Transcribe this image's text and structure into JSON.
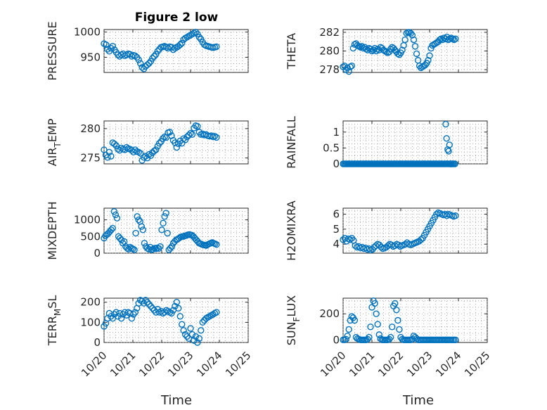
{
  "figure": {
    "title": "Figure 2 low",
    "xlabel": "Time"
  },
  "style": {
    "marker_color": "#0072BD",
    "axes_color": "#262626",
    "grid_color": "#9a9a9a"
  },
  "x_axis": {
    "range": [
      0,
      5
    ],
    "tick_values": [
      0,
      1,
      2,
      3,
      4,
      5
    ],
    "tick_labels": [
      "10/20",
      "10/21",
      "10/22",
      "10/23",
      "10/24",
      "10/25"
    ]
  },
  "chart_data": [
    {
      "type": "scatter",
      "ylabel": "PRESSURE",
      "ylabel_parts": [
        "PRESSURE"
      ],
      "ylim": [
        920,
        1005
      ],
      "yticks": [
        950,
        1000
      ],
      "ytick_labels": [
        "950",
        "1000"
      ],
      "x": [
        0.0,
        0.07,
        0.12,
        0.18,
        0.24,
        0.3,
        0.36,
        0.42,
        0.48,
        0.54,
        0.6,
        0.66,
        0.72,
        0.78,
        0.84,
        0.9,
        0.96,
        1.02,
        1.08,
        1.14,
        1.2,
        1.26,
        1.32,
        1.38,
        1.44,
        1.5,
        1.56,
        1.62,
        1.68,
        1.74,
        1.8,
        1.86,
        1.92,
        1.98,
        2.04,
        2.1,
        2.16,
        2.22,
        2.28,
        2.34,
        2.4,
        2.46,
        2.52,
        2.58,
        2.64,
        2.7,
        2.76,
        2.82,
        2.88,
        2.94,
        3.0,
        3.06,
        3.12,
        3.18,
        3.24,
        3.3,
        3.36,
        3.42,
        3.48,
        3.54,
        3.6,
        3.66,
        3.72,
        3.78,
        3.84,
        3.9
      ],
      "y": [
        977,
        975,
        966,
        962,
        968,
        972,
        965,
        960,
        955,
        952,
        955,
        957,
        953,
        955,
        957,
        956,
        952,
        954,
        953,
        950,
        945,
        938,
        930,
        927,
        932,
        935,
        938,
        942,
        948,
        952,
        956,
        962,
        966,
        970,
        971,
        972,
        970,
        968,
        971,
        970,
        965,
        968,
        970,
        972,
        975,
        978,
        985,
        988,
        990,
        992,
        994,
        996,
        998,
        1000,
        996,
        990,
        986,
        980,
        975,
        973,
        972,
        971,
        970,
        969,
        970,
        971
      ]
    },
    {
      "type": "scatter",
      "ylabel": "THETA",
      "ylabel_parts": [
        "THETA"
      ],
      "ylim": [
        277.7,
        282.3
      ],
      "yticks": [
        278,
        280,
        282
      ],
      "ytick_labels": [
        "278",
        "280",
        "282"
      ],
      "x": [
        0.0,
        0.05,
        0.1,
        0.15,
        0.2,
        0.25,
        0.3,
        0.35,
        0.4,
        0.45,
        0.5,
        0.55,
        0.6,
        0.65,
        0.7,
        0.75,
        0.8,
        0.85,
        0.9,
        0.95,
        1.0,
        1.05,
        1.1,
        1.15,
        1.2,
        1.25,
        1.3,
        1.35,
        1.4,
        1.45,
        1.5,
        1.55,
        1.6,
        1.65,
        1.7,
        1.75,
        1.8,
        1.85,
        1.9,
        1.95,
        2.0,
        2.05,
        2.1,
        2.15,
        2.2,
        2.25,
        2.3,
        2.35,
        2.4,
        2.45,
        2.5,
        2.55,
        2.6,
        2.65,
        2.7,
        2.75,
        2.8,
        2.85,
        2.9,
        2.95,
        3.0,
        3.05,
        3.1,
        3.15,
        3.2,
        3.25,
        3.3,
        3.35,
        3.4,
        3.45,
        3.5,
        3.55,
        3.6,
        3.65,
        3.7,
        3.75,
        3.8,
        3.85,
        3.9
      ],
      "y": [
        278.3,
        278.4,
        278.0,
        278.2,
        277.8,
        278.3,
        278.4,
        280.3,
        280.7,
        280.8,
        280.6,
        280.5,
        280.4,
        280.5,
        280.3,
        280.4,
        280.2,
        280.1,
        280.3,
        280.2,
        280.0,
        280.1,
        280.3,
        280.0,
        280.2,
        280.1,
        280.4,
        280.3,
        280.1,
        280.0,
        279.9,
        279.8,
        279.9,
        280.2,
        280.4,
        280.3,
        280.1,
        279.9,
        279.7,
        279.6,
        279.8,
        280.1,
        280.6,
        281.2,
        281.9,
        282.0,
        282.0,
        281.9,
        281.7,
        281.2,
        280.5,
        279.7,
        279.0,
        278.4,
        278.2,
        278.3,
        278.4,
        278.5,
        278.7,
        279.0,
        279.5,
        280.3,
        280.6,
        280.7,
        280.8,
        280.9,
        281.0,
        281.2,
        281.3,
        281.2,
        281.4,
        281.3,
        281.5,
        281.2,
        281.3,
        281.4,
        281.3,
        281.2,
        281.3
      ]
    },
    {
      "type": "scatter",
      "ylabel": "AIR_TEMP",
      "ylabel_parts": [
        "AIR",
        "T",
        "EMP"
      ],
      "ylim": [
        274.0,
        281.3
      ],
      "yticks": [
        275,
        280
      ],
      "ytick_labels": [
        "275",
        "280"
      ],
      "x": [
        0.0,
        0.06,
        0.12,
        0.18,
        0.24,
        0.3,
        0.36,
        0.42,
        0.48,
        0.54,
        0.6,
        0.66,
        0.72,
        0.78,
        0.84,
        0.9,
        0.96,
        1.02,
        1.08,
        1.14,
        1.2,
        1.26,
        1.32,
        1.38,
        1.44,
        1.5,
        1.56,
        1.62,
        1.68,
        1.74,
        1.8,
        1.86,
        1.92,
        1.98,
        2.04,
        2.1,
        2.16,
        2.22,
        2.28,
        2.34,
        2.4,
        2.46,
        2.52,
        2.58,
        2.64,
        2.7,
        2.76,
        2.82,
        2.88,
        2.94,
        3.0,
        3.06,
        3.12,
        3.18,
        3.24,
        3.3,
        3.36,
        3.42,
        3.48,
        3.54,
        3.6,
        3.66,
        3.72,
        3.78,
        3.84,
        3.9
      ],
      "y": [
        276.4,
        275.5,
        275.1,
        276.0,
        275.3,
        277.6,
        277.4,
        277.1,
        276.5,
        276.3,
        276.7,
        276.5,
        276.4,
        276.8,
        276.6,
        276.5,
        276.3,
        276.0,
        276.4,
        276.1,
        276.0,
        275.8,
        274.6,
        275.1,
        275.3,
        275.0,
        275.6,
        275.4,
        275.9,
        276.2,
        276.4,
        277.0,
        277.5,
        277.8,
        278.3,
        278.6,
        278.5,
        279.3,
        279.4,
        278.8,
        278.0,
        277.6,
        276.8,
        277.4,
        277.9,
        277.5,
        278.3,
        278.1,
        278.6,
        278.9,
        279.2,
        279.0,
        280.1,
        280.5,
        280.4,
        279.4,
        279.0,
        279.1,
        278.9,
        279.0,
        278.8,
        278.7,
        278.8,
        278.6,
        278.7,
        278.5
      ]
    },
    {
      "type": "scatter",
      "ylabel": "RAINFALL",
      "ylabel_parts": [
        "RAINFALL"
      ],
      "ylim": [
        0,
        1.35
      ],
      "yticks": [
        0,
        0.5,
        1
      ],
      "ytick_labels": [
        "0",
        "0.5",
        "1"
      ],
      "x": [
        0.0,
        0.04,
        0.08,
        0.12,
        0.16,
        0.2,
        0.24,
        0.28,
        0.32,
        0.36,
        0.4,
        0.44,
        0.48,
        0.52,
        0.56,
        0.6,
        0.64,
        0.68,
        0.72,
        0.76,
        0.8,
        0.84,
        0.88,
        0.92,
        0.96,
        1.0,
        1.04,
        1.08,
        1.12,
        1.16,
        1.2,
        1.24,
        1.28,
        1.32,
        1.36,
        1.4,
        1.44,
        1.48,
        1.52,
        1.56,
        1.6,
        1.64,
        1.68,
        1.72,
        1.76,
        1.8,
        1.84,
        1.88,
        1.92,
        1.96,
        2.0,
        2.04,
        2.08,
        2.12,
        2.16,
        2.2,
        2.24,
        2.28,
        2.32,
        2.36,
        2.4,
        2.44,
        2.48,
        2.52,
        2.56,
        2.6,
        2.64,
        2.68,
        2.72,
        2.76,
        2.8,
        2.84,
        2.88,
        2.92,
        2.96,
        3.0,
        3.04,
        3.08,
        3.12,
        3.16,
        3.2,
        3.24,
        3.28,
        3.32,
        3.36,
        3.4,
        3.44,
        3.48,
        3.52,
        3.56,
        3.6,
        3.64,
        3.68,
        3.72,
        3.76,
        3.8,
        3.84,
        3.88,
        3.56,
        3.59,
        3.63,
        3.66,
        3.69,
        3.72,
        3.76
      ],
      "y": [
        0,
        0,
        0,
        0,
        0,
        0,
        0,
        0,
        0,
        0,
        0,
        0,
        0,
        0,
        0,
        0,
        0,
        0,
        0,
        0,
        0,
        0,
        0,
        0,
        0,
        0,
        0,
        0,
        0,
        0,
        0,
        0,
        0,
        0,
        0,
        0,
        0,
        0,
        0,
        0,
        0,
        0,
        0,
        0,
        0,
        0,
        0,
        0,
        0,
        0,
        0,
        0,
        0,
        0,
        0,
        0,
        0,
        0,
        0,
        0,
        0,
        0,
        0,
        0,
        0,
        0,
        0,
        0,
        0,
        0,
        0,
        0,
        0,
        0,
        0,
        0,
        0,
        0,
        0,
        0,
        0,
        0,
        0,
        0,
        0,
        0,
        0,
        0,
        0,
        0,
        0,
        0,
        0,
        0,
        0,
        0,
        0,
        0,
        1.25,
        0.8,
        0.45,
        0.4,
        0.6,
        0.0,
        0.0
      ]
    },
    {
      "type": "scatter",
      "ylabel": "MIXDEPTH",
      "ylabel_parts": [
        "MIXDEPTH"
      ],
      "ylim": [
        0,
        1350
      ],
      "yticks": [
        0,
        500,
        1000
      ],
      "ytick_labels": [
        "0",
        "500",
        "1000"
      ],
      "x": [
        0.0,
        0.05,
        0.1,
        0.15,
        0.2,
        0.25,
        0.3,
        0.35,
        0.4,
        0.45,
        0.5,
        0.55,
        0.6,
        0.65,
        0.7,
        0.75,
        0.8,
        0.85,
        0.9,
        0.95,
        1.0,
        1.05,
        1.1,
        1.15,
        1.2,
        1.25,
        1.3,
        1.35,
        1.4,
        1.45,
        1.5,
        1.55,
        1.6,
        1.65,
        1.7,
        1.75,
        1.8,
        1.85,
        1.9,
        1.95,
        2.0,
        2.05,
        2.1,
        2.15,
        2.2,
        2.25,
        2.3,
        2.35,
        2.4,
        2.45,
        2.5,
        2.55,
        2.6,
        2.65,
        2.7,
        2.75,
        2.8,
        2.85,
        2.9,
        2.95,
        3.0,
        3.05,
        3.1,
        3.15,
        3.2,
        3.25,
        3.3,
        3.35,
        3.4,
        3.45,
        3.5,
        3.55,
        3.6,
        3.65,
        3.7,
        3.75,
        3.8,
        3.85,
        3.9
      ],
      "y": [
        450,
        520,
        560,
        600,
        650,
        700,
        750,
        1250,
        1150,
        1050,
        500,
        450,
        400,
        300,
        350,
        200,
        150,
        120,
        180,
        150,
        130,
        100,
        600,
        1100,
        1000,
        950,
        800,
        700,
        300,
        200,
        150,
        120,
        180,
        100,
        120,
        150,
        130,
        160,
        140,
        200,
        700,
        900,
        1100,
        1200,
        600,
        100,
        150,
        200,
        300,
        350,
        400,
        420,
        450,
        480,
        500,
        500,
        520,
        530,
        550,
        560,
        550,
        540,
        500,
        450,
        400,
        350,
        300,
        280,
        260,
        250,
        240,
        230,
        260,
        280,
        300,
        320,
        300,
        280,
        260
      ]
    },
    {
      "type": "scatter",
      "ylabel": "H2OMIXRA",
      "ylabel_parts": [
        "H2OMIXRA"
      ],
      "ylim": [
        3.4,
        6.4
      ],
      "yticks": [
        4,
        5,
        6
      ],
      "ytick_labels": [
        "4",
        "5",
        "6"
      ],
      "x": [
        0.0,
        0.06,
        0.12,
        0.18,
        0.24,
        0.3,
        0.36,
        0.42,
        0.48,
        0.54,
        0.6,
        0.66,
        0.72,
        0.78,
        0.84,
        0.9,
        0.96,
        1.02,
        1.08,
        1.14,
        1.2,
        1.26,
        1.32,
        1.38,
        1.44,
        1.5,
        1.56,
        1.62,
        1.68,
        1.74,
        1.8,
        1.86,
        1.92,
        1.98,
        2.04,
        2.1,
        2.16,
        2.22,
        2.28,
        2.34,
        2.4,
        2.46,
        2.52,
        2.58,
        2.64,
        2.7,
        2.76,
        2.82,
        2.88,
        2.94,
        3.0,
        3.06,
        3.12,
        3.18,
        3.24,
        3.3,
        3.36,
        3.42,
        3.48,
        3.54,
        3.6,
        3.66,
        3.72,
        3.78,
        3.84,
        3.9
      ],
      "y": [
        4.3,
        4.4,
        4.2,
        4.35,
        4.3,
        4.4,
        4.25,
        3.9,
        3.8,
        3.85,
        3.75,
        3.8,
        3.7,
        3.75,
        3.65,
        3.7,
        3.6,
        3.65,
        3.8,
        3.9,
        4.0,
        3.95,
        3.8,
        3.7,
        3.75,
        3.8,
        3.9,
        4.0,
        3.95,
        3.85,
        3.9,
        4.0,
        3.95,
        3.85,
        3.9,
        3.95,
        4.0,
        4.1,
        4.0,
        3.95,
        4.0,
        4.05,
        4.1,
        4.15,
        4.2,
        4.3,
        4.4,
        4.6,
        4.8,
        5.0,
        5.2,
        5.4,
        5.6,
        5.8,
        6.0,
        6.1,
        6.05,
        6.0,
        5.95,
        6.0,
        5.9,
        6.0,
        5.95,
        5.9,
        5.85,
        5.9
      ]
    },
    {
      "type": "scatter",
      "ylabel": "TERR_MSL",
      "ylabel_parts": [
        "TERR",
        "M",
        "SL"
      ],
      "ylim": [
        0,
        220
      ],
      "yticks": [
        0,
        100,
        200
      ],
      "ytick_labels": [
        "0",
        "100",
        "200"
      ],
      "x": [
        0.0,
        0.06,
        0.12,
        0.18,
        0.24,
        0.3,
        0.36,
        0.42,
        0.48,
        0.54,
        0.6,
        0.66,
        0.72,
        0.78,
        0.84,
        0.9,
        0.96,
        1.02,
        1.08,
        1.14,
        1.2,
        1.26,
        1.32,
        1.38,
        1.44,
        1.5,
        1.56,
        1.62,
        1.68,
        1.74,
        1.8,
        1.86,
        1.92,
        1.98,
        2.04,
        2.1,
        2.16,
        2.22,
        2.28,
        2.34,
        2.4,
        2.46,
        2.52,
        2.58,
        2.64,
        2.7,
        2.76,
        2.82,
        2.88,
        2.94,
        3.0,
        3.06,
        3.12,
        3.18,
        3.24,
        3.3,
        3.36,
        3.42,
        3.48,
        3.54,
        3.6,
        3.66,
        3.72,
        3.78,
        3.84,
        3.9
      ],
      "y": [
        80,
        95,
        120,
        145,
        130,
        120,
        140,
        150,
        130,
        145,
        120,
        140,
        150,
        135,
        150,
        145,
        120,
        140,
        150,
        170,
        195,
        210,
        205,
        195,
        210,
        200,
        190,
        180,
        170,
        160,
        150,
        165,
        150,
        155,
        145,
        150,
        160,
        155,
        150,
        145,
        160,
        180,
        200,
        170,
        130,
        90,
        60,
        40,
        30,
        20,
        70,
        40,
        10,
        30,
        0,
        20,
        60,
        100,
        110,
        120,
        125,
        130,
        135,
        140,
        145,
        150
      ]
    },
    {
      "type": "scatter",
      "ylabel": "SUN_FLUX",
      "ylabel_parts": [
        "SUN",
        "F",
        "LUX"
      ],
      "ylim": [
        -20,
        320
      ],
      "yticks": [
        0,
        200
      ],
      "ytick_labels": [
        "0",
        "200"
      ],
      "x": [
        0.0,
        0.05,
        0.1,
        0.15,
        0.2,
        0.25,
        0.3,
        0.35,
        0.4,
        0.45,
        0.5,
        0.55,
        0.6,
        0.65,
        0.7,
        0.75,
        0.8,
        0.85,
        0.9,
        0.95,
        1.0,
        1.05,
        1.1,
        1.15,
        1.2,
        1.25,
        1.3,
        1.35,
        1.4,
        1.45,
        1.5,
        1.55,
        1.6,
        1.65,
        1.7,
        1.75,
        1.8,
        1.85,
        1.9,
        1.95,
        2.0,
        2.05,
        2.1,
        2.15,
        2.2,
        2.25,
        2.3,
        2.35,
        2.4,
        2.45,
        2.5,
        2.55,
        2.6,
        2.65,
        2.7,
        2.75,
        2.8,
        2.85,
        2.9,
        2.95,
        3.0,
        3.05,
        3.1,
        3.15,
        3.2,
        3.25,
        3.3,
        3.35,
        3.4,
        3.45,
        3.5,
        3.55,
        3.6,
        3.65,
        3.7,
        3.75,
        3.8,
        3.85,
        3.9
      ],
      "y": [
        0,
        0,
        5,
        30,
        80,
        150,
        180,
        170,
        150,
        20,
        10,
        5,
        0,
        0,
        0,
        0,
        0,
        5,
        20,
        100,
        250,
        300,
        280,
        200,
        120,
        40,
        10,
        0,
        0,
        0,
        0,
        0,
        5,
        20,
        100,
        260,
        280,
        230,
        150,
        80,
        20,
        5,
        0,
        0,
        0,
        0,
        0,
        0,
        5,
        30,
        20,
        10,
        0,
        0,
        0,
        0,
        0,
        0,
        0,
        0,
        0,
        0,
        0,
        0,
        0,
        0,
        0,
        0,
        0,
        0,
        0,
        0,
        0,
        0,
        0,
        0,
        0,
        0,
        0
      ]
    }
  ]
}
